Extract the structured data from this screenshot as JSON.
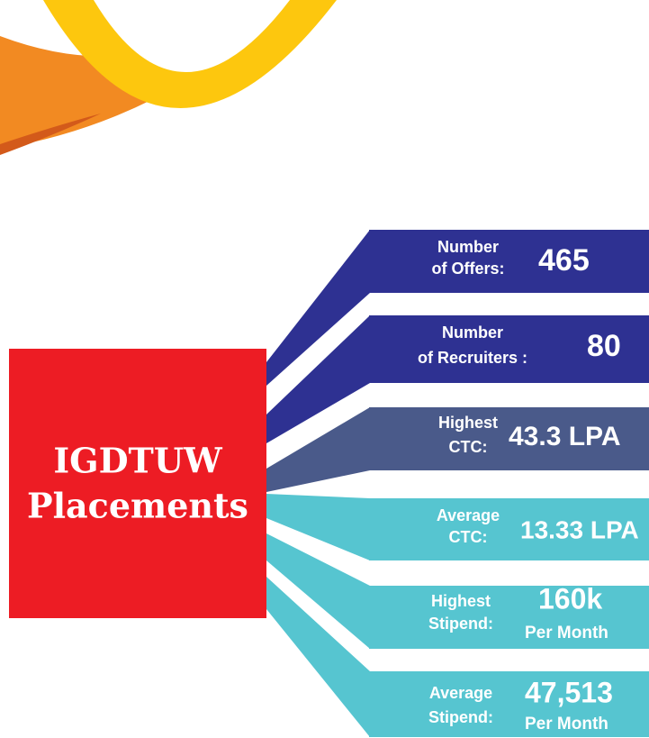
{
  "title": [
    "IGDTUW",
    "Placements"
  ],
  "items": [
    {
      "label": [
        "Number",
        "of Offers:"
      ],
      "value": "465"
    },
    {
      "label": [
        "Number",
        "of Recruiters :"
      ],
      "value": "80"
    },
    {
      "label": [
        "Highest",
        "CTC:"
      ],
      "value": "43.3 LPA"
    },
    {
      "label": [
        "Average",
        "CTC:"
      ],
      "value": "13.33 LPA"
    },
    {
      "label": [
        "Highest",
        "Stipend:"
      ],
      "value": "160k",
      "sub": "Per Month"
    },
    {
      "label": [
        "Average",
        "Stipend:"
      ],
      "value": "47,513",
      "sub": "Per Month"
    }
  ]
}
